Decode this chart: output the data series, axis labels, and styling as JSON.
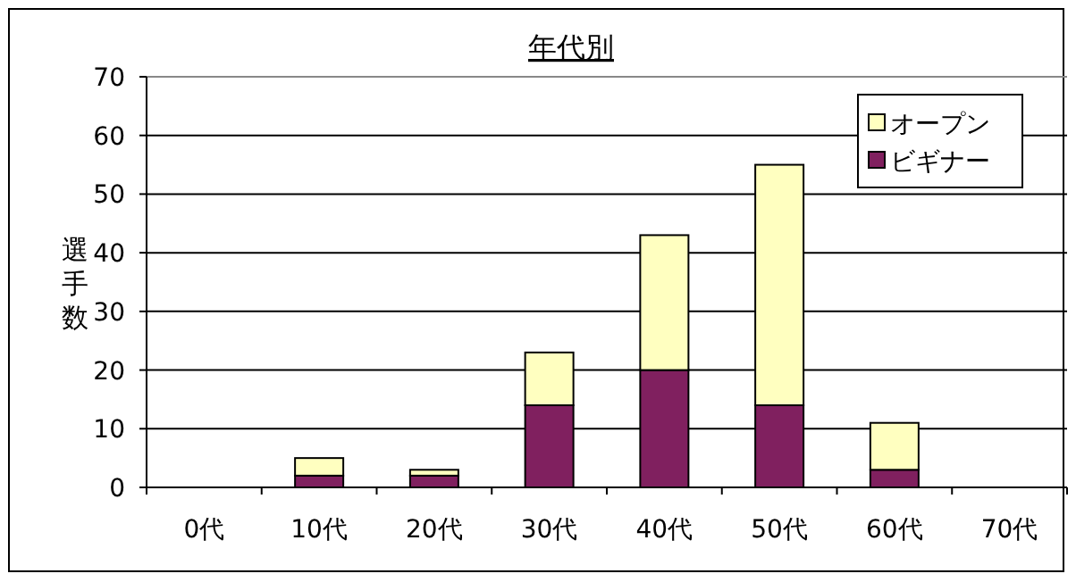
{
  "chart_data": {
    "type": "bar",
    "title": "年代別",
    "ylabel": "選手数",
    "stacked": true,
    "categories": [
      "0代",
      "10代",
      "20代",
      "30代",
      "40代",
      "50代",
      "60代",
      "70代"
    ],
    "series": [
      {
        "name": "ビギナー",
        "color": "#80205f",
        "values": [
          0,
          2,
          2,
          14,
          20,
          14,
          3,
          0
        ]
      },
      {
        "name": "オープン",
        "color": "#ffffc0",
        "values": [
          0,
          3,
          1,
          9,
          23,
          41,
          8,
          0
        ]
      }
    ],
    "ylim": [
      0,
      70
    ],
    "yticks": [
      0,
      10,
      20,
      30,
      40,
      50,
      60,
      70
    ],
    "grid": "y",
    "legend": "top right"
  }
}
